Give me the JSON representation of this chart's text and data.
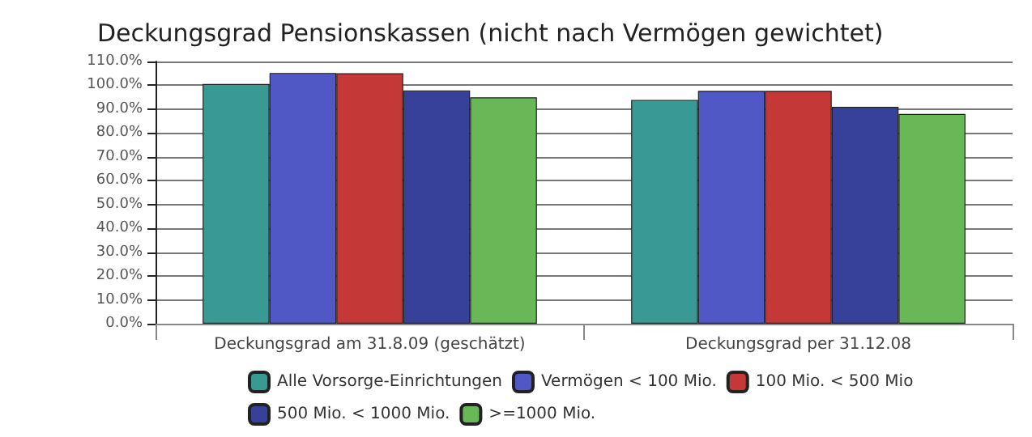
{
  "chart_data": {
    "type": "bar",
    "title": "Deckungsgrad Pensionskassen (nicht nach Vermögen gewichtet)",
    "categories": [
      "Deckungsgrad am 31.8.09 (geschätzt)",
      "Deckungsgrad per 31.12.08"
    ],
    "series": [
      {
        "name": "Alle Vorsorge-Einrichtungen",
        "color": "#399a94",
        "values": [
          100.6,
          93.9
        ]
      },
      {
        "name": "Vermögen < 100 Mio.",
        "color": "#5058c6",
        "values": [
          105.2,
          97.7
        ]
      },
      {
        "name": "100 Mio. < 500 Mio",
        "color": "#c43838",
        "values": [
          105.1,
          97.7
        ]
      },
      {
        "name": "500 Mio. < 1000 Mio.",
        "color": "#38419a",
        "values": [
          97.9,
          91
        ]
      },
      {
        "name": ">=1000 Mio.",
        "color": "#68b858",
        "values": [
          95,
          88
        ]
      }
    ],
    "ylim": [
      0,
      110
    ],
    "yticks": [
      {
        "value": 0,
        "label": "0.0%"
      },
      {
        "value": 10,
        "label": "10.0%"
      },
      {
        "value": 20,
        "label": "20.0%"
      },
      {
        "value": 30,
        "label": "30.0%"
      },
      {
        "value": 40,
        "label": "40.0%"
      },
      {
        "value": 50,
        "label": "50.0%"
      },
      {
        "value": 60,
        "label": "60.0%"
      },
      {
        "value": 70,
        "label": "70.0%"
      },
      {
        "value": 80,
        "label": "80.0%"
      },
      {
        "value": 90,
        "label": "90.0%"
      },
      {
        "value": 100,
        "label": "100.0%"
      },
      {
        "value": 110,
        "label": "110.0%"
      }
    ],
    "grid": "y",
    "legend": "bottom"
  }
}
